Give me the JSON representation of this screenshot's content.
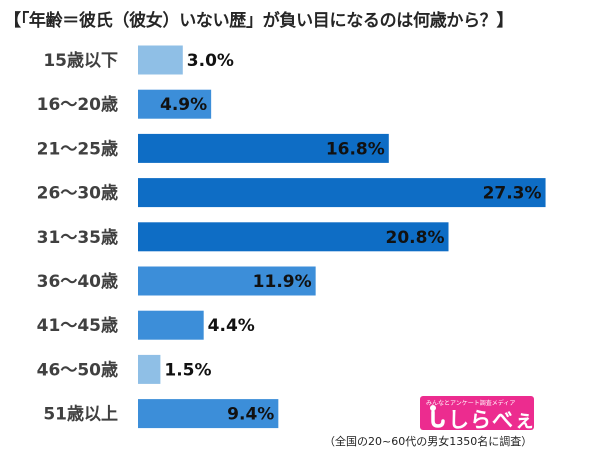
{
  "title": "【「年齢＝彼氏（彼女）いない歴」が負い目になるのは何歳から？】",
  "footnote": "（全国の20~60代の男女1350名に調査）",
  "logo": {
    "text": "しらべぇ",
    "tagline": "みんなとアンケート調査メディア",
    "color": "#ec2c8f"
  },
  "colors": {
    "dark_bar": "#0e6dc5",
    "mid_bar": "#3c8ed9",
    "light_bar": "#8fbfe6"
  },
  "chart_data": {
    "type": "bar",
    "orientation": "horizontal",
    "categories": [
      "15歳以下",
      "16～20歳",
      "21～25歳",
      "26～30歳",
      "31～35歳",
      "36～40歳",
      "41～45歳",
      "46～50歳",
      "51歳以上"
    ],
    "values": [
      3.0,
      4.9,
      16.8,
      27.3,
      20.8,
      11.9,
      4.4,
      1.5,
      9.4
    ],
    "value_labels": [
      "3.0%",
      "4.9%",
      "16.8%",
      "27.3%",
      "20.8%",
      "11.9%",
      "4.4%",
      "1.5%",
      "9.4%"
    ],
    "bar_colors": [
      "light",
      "mid",
      "dark",
      "dark",
      "dark",
      "mid",
      "mid",
      "light",
      "mid"
    ],
    "xlim": [
      0,
      28
    ],
    "grid": false,
    "legend": "none"
  }
}
